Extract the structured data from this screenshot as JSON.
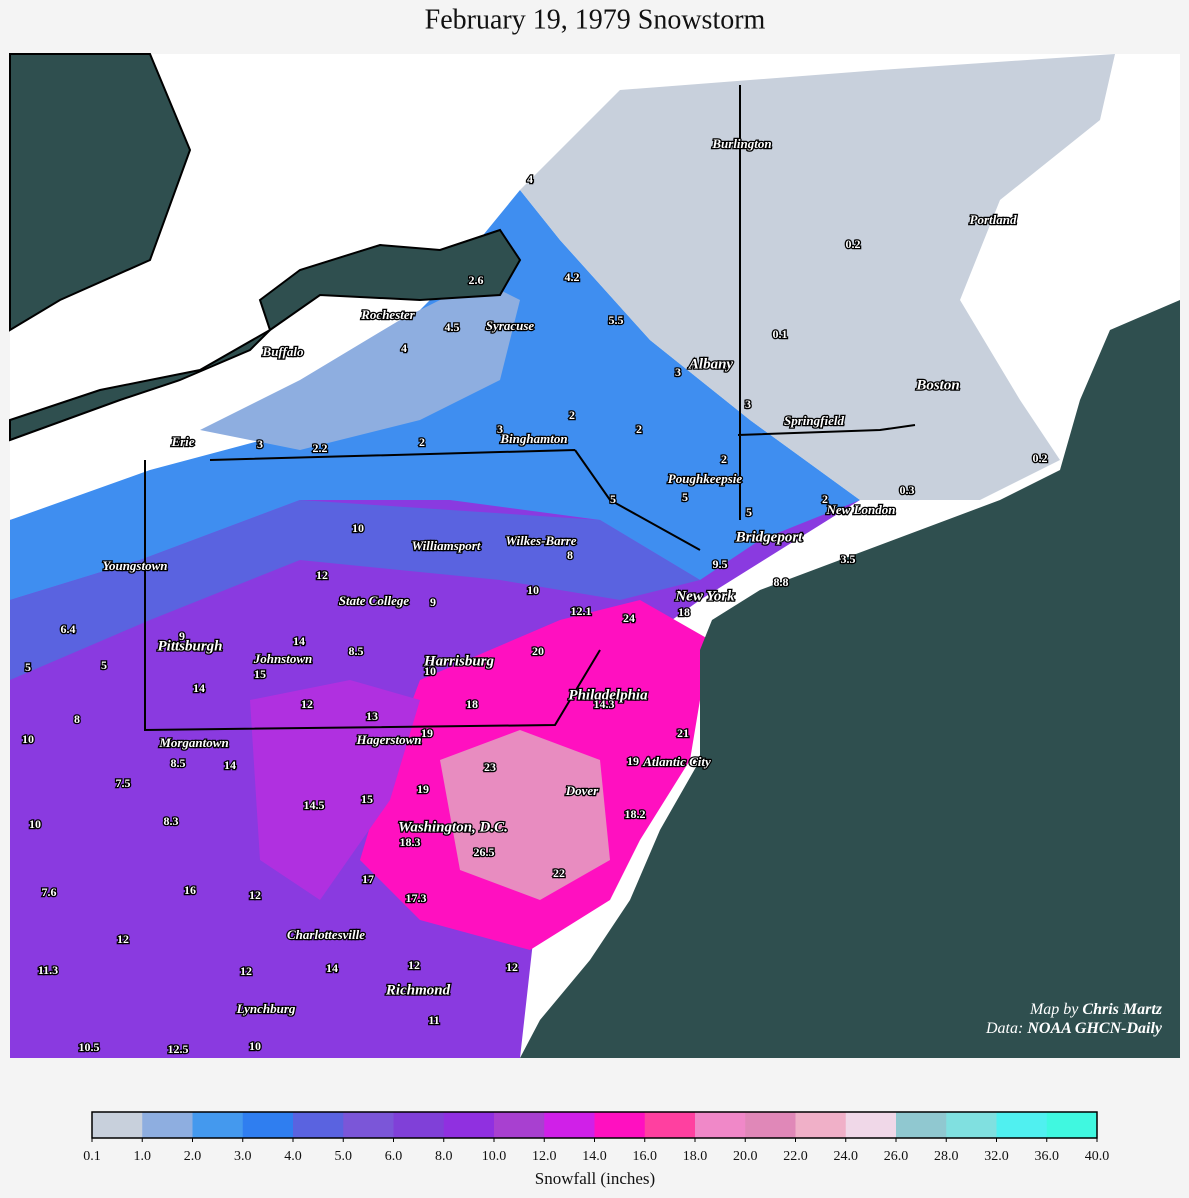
{
  "title": "February 19, 1979 Snowstorm",
  "map": {
    "cities": [
      "Burlington",
      "Portland",
      "Rochester",
      "Syracuse",
      "Buffalo",
      "Albany",
      "Boston",
      "Springfield",
      "Erie",
      "Binghamton",
      "Poughkeepsie",
      "New London",
      "Bridgeport",
      "Williamsport",
      "Wilkes-Barre",
      "Youngstown",
      "State College",
      "New York",
      "Pittsburgh",
      "Johnstown",
      "Harrisburg",
      "Philadelphia",
      "Morgantown",
      "Hagerstown",
      "Atlantic City",
      "Dover",
      "Washington, D.C.",
      "Charlottesville",
      "Richmond",
      "Lynchburg"
    ],
    "snowfall": [
      4,
      2.6,
      4.2,
      4.5,
      5.5,
      4,
      0.2,
      0.1,
      3,
      3,
      2,
      2,
      3,
      2,
      3,
      2.2,
      2,
      0.2,
      0.3,
      5,
      5,
      2,
      5,
      10,
      8,
      9.5,
      3.5,
      8.8,
      12,
      10,
      9,
      12.1,
      24,
      18,
      6.4,
      9,
      14,
      8.5,
      20,
      5,
      5,
      15,
      10,
      14,
      12,
      18,
      14.3,
      13,
      8,
      19,
      21,
      10,
      8.5,
      14,
      23,
      19,
      7.5,
      19,
      15,
      14.5,
      18.2,
      10,
      8.3,
      18.3,
      26.5,
      17,
      22,
      16,
      12,
      7.6,
      17.3,
      12,
      11.3,
      12,
      14,
      12,
      12,
      11,
      10.5,
      12.5,
      10
    ],
    "credit": {
      "map_prefix": "Map by",
      "map_author": "Chris Martz",
      "data_prefix": "Data:",
      "data_source": "NOAA GHCN-Daily"
    }
  },
  "colorbar": {
    "label": "Snowfall (inches)",
    "colors": [
      "#c8d0dc",
      "#8eaee0",
      "#4499ee",
      "#2f7ef0",
      "#5a63e0",
      "#7b56d8",
      "#8040d8",
      "#9030e0",
      "#a840d0",
      "#d020e8",
      "#ff10c0",
      "#ff40a0",
      "#f088c8",
      "#e088b8",
      "#f0b0c8",
      "#f0d8e8",
      "#90c8d0",
      "#80e0e0",
      "#50f0f0",
      "#40f8e0"
    ],
    "ticks": [
      0.1,
      {
        "value": 1,
        "label": "1.0"
      },
      {
        "value": 2,
        "label": "2.0"
      },
      {
        "value": 3,
        "label": "3.0"
      },
      {
        "value": 4,
        "label": "4.0"
      },
      {
        "value": 5,
        "label": "5.0"
      },
      {
        "value": 6,
        "label": "6.0"
      },
      {
        "value": 8,
        "label": "8.0"
      },
      {
        "value": 10,
        "label": "10.0"
      },
      {
        "value": 12,
        "label": "12.0"
      },
      {
        "value": 14,
        "label": "14.0"
      },
      {
        "value": 16,
        "label": "16.0"
      },
      {
        "value": 18,
        "label": "18.0"
      },
      {
        "value": 20,
        "label": "20.0"
      },
      {
        "value": 22,
        "label": "22.0"
      },
      {
        "value": 24,
        "label": "24.0"
      },
      {
        "value": 26,
        "label": "26.0"
      },
      {
        "value": 28,
        "label": "28.0"
      },
      {
        "value": 32,
        "label": "32.0"
      },
      {
        "value": 36,
        "label": "36.0"
      },
      {
        "value": 40,
        "label": "40.0"
      }
    ]
  }
}
